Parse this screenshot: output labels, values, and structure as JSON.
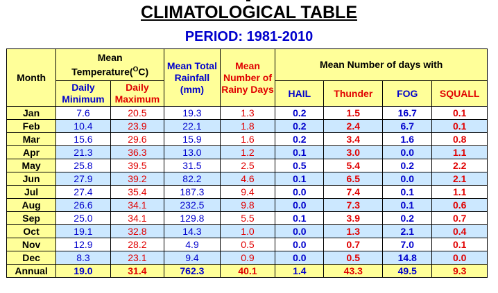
{
  "page": {
    "title": "CLIMATOLOGICAL TABLE",
    "period": "PERIOD: 1981-2010"
  },
  "header": {
    "month": "Month",
    "mean_temp_line1": "Mean",
    "mean_temp_line2": "Temperature(",
    "mean_temp_unit_sup": "O",
    "mean_temp_unit": "C)",
    "daily_min": "Daily Minimum",
    "daily_max": "Daily Maximum",
    "rainfall": "Mean Total Rainfall (mm)",
    "rainy_days": "Mean Number of Rainy Days",
    "days_with": "Mean Number of days with",
    "hail": "HAIL",
    "thunder": "Thunder",
    "fog": "FOG",
    "squall": "SQUALL"
  },
  "colors": {
    "header_bg": "#ffff99",
    "alt_row_bg": "#cce8ff",
    "blue": "#0000cc",
    "red": "#e00000"
  },
  "rows": [
    {
      "month": "Jan",
      "min": "7.6",
      "max": "20.5",
      "rain": "19.3",
      "rainy": "1.3",
      "hail": "0.2",
      "thunder": "1.5",
      "fog": "16.7",
      "squall": "0.1"
    },
    {
      "month": "Feb",
      "min": "10.4",
      "max": "23.9",
      "rain": "22.1",
      "rainy": "1.8",
      "hail": "0.2",
      "thunder": "2.4",
      "fog": "6.7",
      "squall": "0.1"
    },
    {
      "month": "Mar",
      "min": "15.6",
      "max": "29.6",
      "rain": "15.9",
      "rainy": "1.6",
      "hail": "0.2",
      "thunder": "3.4",
      "fog": "1.6",
      "squall": "0.8"
    },
    {
      "month": "Apr",
      "min": "21.3",
      "max": "36.3",
      "rain": "13.0",
      "rainy": "1.2",
      "hail": "0.1",
      "thunder": "3.0",
      "fog": "0.0",
      "squall": "1.1"
    },
    {
      "month": "May",
      "min": "25.8",
      "max": "39.5",
      "rain": "31.5",
      "rainy": "2.5",
      "hail": "0.5",
      "thunder": "5.4",
      "fog": "0.2",
      "squall": "2.2"
    },
    {
      "month": "Jun",
      "min": "27.9",
      "max": "39.2",
      "rain": "82.2",
      "rainy": "4.6",
      "hail": "0.1",
      "thunder": "6.5",
      "fog": "0.0",
      "squall": "2.1"
    },
    {
      "month": "Jul",
      "min": "27.4",
      "max": "35.4",
      "rain": "187.3",
      "rainy": "9.4",
      "hail": "0.0",
      "thunder": "7.4",
      "fog": "0.1",
      "squall": "1.1"
    },
    {
      "month": "Aug",
      "min": "26.6",
      "max": "34.1",
      "rain": "232.5",
      "rainy": "9.8",
      "hail": "0.0",
      "thunder": "7.3",
      "fog": "0.1",
      "squall": "0.6"
    },
    {
      "month": "Sep",
      "min": "25.0",
      "max": "34.1",
      "rain": "129.8",
      "rainy": "5.5",
      "hail": "0.1",
      "thunder": "3.9",
      "fog": "0.2",
      "squall": "0.7"
    },
    {
      "month": "Oct",
      "min": "19.1",
      "max": "32.8",
      "rain": "14.3",
      "rainy": "1.0",
      "hail": "0.0",
      "thunder": "1.3",
      "fog": "2.1",
      "squall": "0.4"
    },
    {
      "month": "Nov",
      "min": "12.9",
      "max": "28.2",
      "rain": "4.9",
      "rainy": "0.5",
      "hail": "0.0",
      "thunder": "0.7",
      "fog": "7.0",
      "squall": "0.1"
    },
    {
      "month": "Dec",
      "min": "8.3",
      "max": "23.1",
      "rain": "9.4",
      "rainy": "0.9",
      "hail": "0.0",
      "thunder": "0.5",
      "fog": "14.8",
      "squall": "0.0"
    }
  ],
  "annual": {
    "month": "Annual",
    "min": "19.0",
    "max": "31.4",
    "rain": "762.3",
    "rainy": "40.1",
    "hail": "1.4",
    "thunder": "43.3",
    "fog": "49.5",
    "squall": "9.3"
  }
}
